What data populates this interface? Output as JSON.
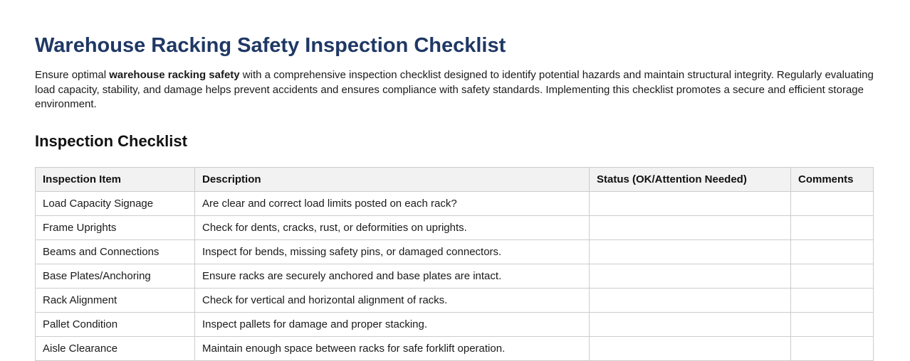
{
  "page": {
    "title": "Warehouse Racking Safety Inspection Checklist",
    "intro": {
      "before_bold": "Ensure optimal ",
      "bold_phrase": "warehouse racking safety",
      "after_bold": " with a comprehensive inspection checklist designed to identify potential hazards and maintain structural integrity. Regularly evaluating load capacity, stability, and damage helps prevent accidents and ensures compliance with safety standards. Implementing this checklist promotes a secure and efficient storage environment."
    },
    "section_heading": "Inspection Checklist"
  },
  "table": {
    "headers": [
      "Inspection Item",
      "Description",
      "Status (OK/Attention Needed)",
      "Comments"
    ],
    "rows": [
      {
        "item": "Load Capacity Signage",
        "description": "Are clear and correct load limits posted on each rack?",
        "status": "",
        "comments": ""
      },
      {
        "item": "Frame Uprights",
        "description": "Check for dents, cracks, rust, or deformities on uprights.",
        "status": "",
        "comments": ""
      },
      {
        "item": "Beams and Connections",
        "description": "Inspect for bends, missing safety pins, or damaged connectors.",
        "status": "",
        "comments": ""
      },
      {
        "item": "Base Plates/Anchoring",
        "description": "Ensure racks are securely anchored and base plates are intact.",
        "status": "",
        "comments": ""
      },
      {
        "item": "Rack Alignment",
        "description": "Check for vertical and horizontal alignment of racks.",
        "status": "",
        "comments": ""
      },
      {
        "item": "Pallet Condition",
        "description": "Inspect pallets for damage and proper stacking.",
        "status": "",
        "comments": ""
      },
      {
        "item": "Aisle Clearance",
        "description": "Maintain enough space between racks for safe forklift operation.",
        "status": "",
        "comments": ""
      }
    ]
  },
  "colors": {
    "title": "#1f3864",
    "header_background": "#f2f2f2",
    "table_border": "#cccccc"
  }
}
